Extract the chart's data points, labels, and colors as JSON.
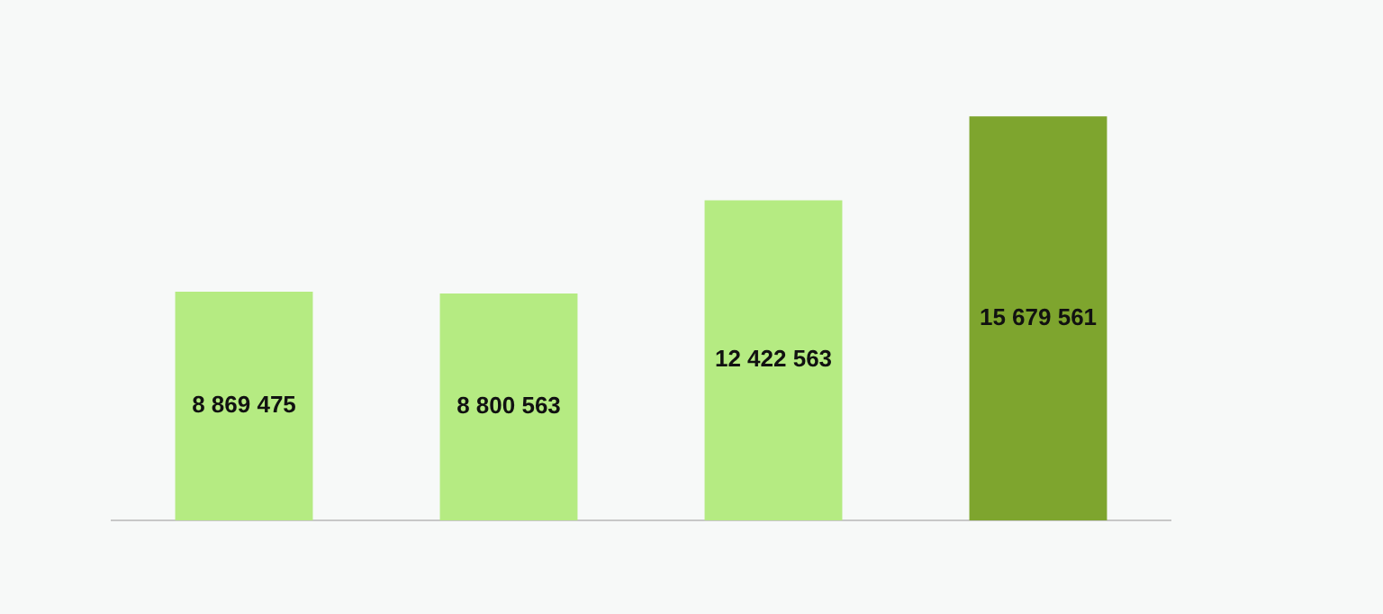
{
  "chart_data": {
    "type": "bar",
    "categories": [
      null,
      null,
      null,
      null
    ],
    "values": [
      8869475,
      8800563,
      12422563,
      15679561
    ],
    "colors": [
      "#b5eb82",
      "#b5eb82",
      "#b5eb82",
      "#7ea52e"
    ],
    "value_labels": [
      "8 869 475",
      "8 800 563",
      "12 422 563",
      "15 679 561"
    ],
    "tick_labels": false,
    "grid": false,
    "legend": false
  }
}
